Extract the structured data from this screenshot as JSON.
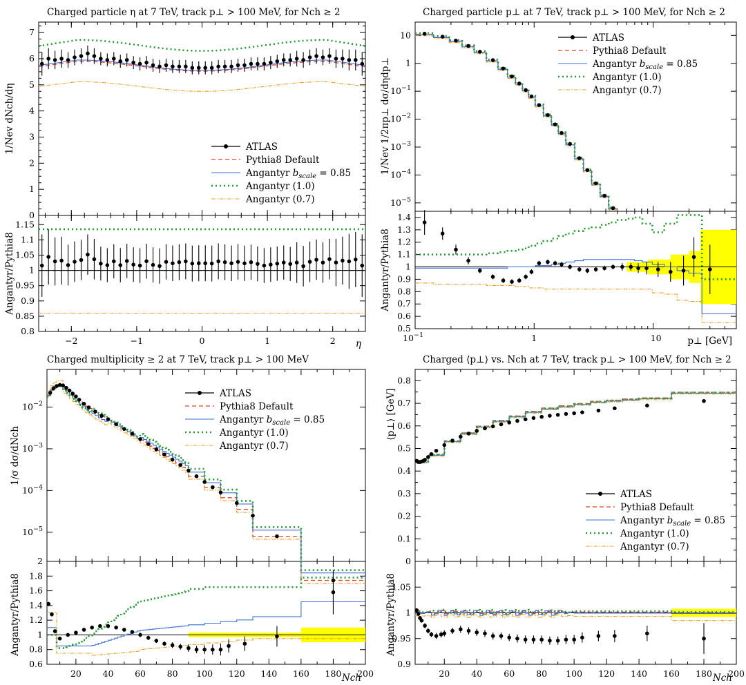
{
  "legend": {
    "atlas": "ATLAS",
    "default": "Pythia8 Default",
    "bscale": "Angantyr b_scale = 0.85",
    "a10": "Angantyr (1.0)",
    "a07": "Angantyr (0.7)"
  },
  "ratio_label": "Angantyr/Pythia8",
  "colors": {
    "atlas": "#000000",
    "default": "#e8402b",
    "bscale": "#3b6fd6",
    "a10": "#1e9e2e",
    "a07": "#f0a020",
    "band": "#ffff00"
  },
  "chart_data": [
    {
      "id": "eta",
      "type": "line",
      "title": "Charged particle η at 7 TeV, track p⊥ > 100 MeV, for Nch ≥ 2",
      "xlabel": "η",
      "ylabel": "1/Nev dNch/dη",
      "xlim": [
        -2.5,
        2.5
      ],
      "ylim": [
        0,
        7.4
      ],
      "ratio_ylim": [
        0.8,
        1.18
      ],
      "x_ticks": [
        -2,
        -1,
        0,
        1,
        2
      ],
      "y_ticks": [
        0,
        1,
        2,
        3,
        4,
        5,
        6,
        7
      ],
      "ratio_ticks": [
        0.8,
        0.85,
        0.9,
        0.95,
        1,
        1.05,
        1.1,
        1.15
      ],
      "legend_position": "bottom-right",
      "x": [
        -2.45,
        -2.35,
        -2.25,
        -2.15,
        -2.05,
        -1.95,
        -1.85,
        -1.75,
        -1.65,
        -1.55,
        -1.45,
        -1.35,
        -1.25,
        -1.15,
        -1.05,
        -0.95,
        -0.85,
        -0.75,
        -0.65,
        -0.55,
        -0.45,
        -0.35,
        -0.25,
        -0.15,
        -0.05,
        0.05,
        0.15,
        0.25,
        0.35,
        0.45,
        0.55,
        0.65,
        0.75,
        0.85,
        0.95,
        1.05,
        1.15,
        1.25,
        1.35,
        1.45,
        1.55,
        1.65,
        1.75,
        1.85,
        1.95,
        2.05,
        2.15,
        2.25,
        2.35,
        2.45
      ],
      "atlas": [
        5.8,
        6.0,
        5.95,
        6.0,
        5.95,
        6.05,
        6.1,
        6.2,
        6.1,
        6.0,
        5.95,
        6.0,
        5.9,
        5.95,
        5.85,
        5.8,
        5.85,
        5.75,
        5.7,
        5.75,
        5.7,
        5.7,
        5.7,
        5.65,
        5.65,
        5.65,
        5.65,
        5.7,
        5.7,
        5.7,
        5.75,
        5.75,
        5.8,
        5.8,
        5.8,
        5.85,
        5.9,
        5.95,
        5.95,
        6.0,
        5.95,
        6.05,
        6.1,
        6.05,
        6.1,
        6.0,
        6.0,
        5.95,
        5.95,
        5.8
      ],
      "atlas_err": [
        0.45,
        0.4,
        0.35,
        0.35,
        0.3,
        0.3,
        0.3,
        0.3,
        0.3,
        0.25,
        0.25,
        0.25,
        0.25,
        0.25,
        0.25,
        0.25,
        0.25,
        0.25,
        0.25,
        0.25,
        0.25,
        0.25,
        0.25,
        0.25,
        0.25,
        0.25,
        0.25,
        0.25,
        0.25,
        0.25,
        0.25,
        0.25,
        0.25,
        0.25,
        0.25,
        0.25,
        0.25,
        0.25,
        0.25,
        0.3,
        0.3,
        0.3,
        0.3,
        0.3,
        0.3,
        0.35,
        0.35,
        0.4,
        0.4,
        0.45
      ],
      "curves": {
        "default": {
          "peak": 5.9,
          "mid": 5.52
        },
        "bscale": {
          "peak": 5.95,
          "mid": 5.55
        },
        "a10": {
          "peak": 6.72,
          "mid": 6.3
        },
        "a07": {
          "peak": 5.12,
          "mid": 4.75
        }
      },
      "ratio": {
        "default": 1.0,
        "bscale": 1.0,
        "a10": 1.135,
        "a07": 0.86
      }
    },
    {
      "id": "pt",
      "type": "line",
      "title": "Charged particle p⊥ at 7 TeV, track p⊥ > 100 MeV, for Nch ≥ 2",
      "xlabel": "p⊥ [GeV]",
      "ylabel": "1/Nev 1/2πp⊥ dσ/dηdp⊥",
      "log_x": true,
      "log_y": true,
      "xlim": [
        0.1,
        50
      ],
      "ylim": [
        5e-06,
        30
      ],
      "ratio_ylim": [
        0.5,
        1.45
      ],
      "ratio_ticks": [
        0.5,
        0.6,
        0.7,
        0.8,
        0.9,
        1,
        1.1,
        1.2,
        1.3,
        1.4
      ],
      "legend_position": "top-right",
      "x": [
        0.12,
        0.17,
        0.22,
        0.28,
        0.35,
        0.45,
        0.55,
        0.65,
        0.75,
        0.85,
        0.95,
        1.1,
        1.3,
        1.5,
        1.7,
        2.0,
        2.4,
        2.8,
        3.3,
        3.9,
        4.6,
        5.5,
        6.5,
        7.5,
        8.8,
        11,
        14,
        18,
        22,
        30
      ],
      "atlas": [
        11.5,
        9.0,
        6.5,
        4.2,
        2.6,
        1.3,
        0.65,
        0.34,
        0.19,
        0.11,
        0.065,
        0.032,
        0.014,
        0.0065,
        0.0032,
        0.0013,
        0.0004,
        0.00015,
        5e-05,
        1.8e-05,
        6.5e-06,
        2.5e-06,
        1e-06,
        5e-07,
        2e-07,
        7e-08,
        2e-08,
        6e-09,
        2e-09,
        4e-10
      ],
      "ratio": {
        "atlas": [
          1.36,
          1.27,
          1.14,
          1.05,
          0.97,
          0.92,
          0.89,
          0.88,
          0.89,
          0.92,
          0.96,
          1.03,
          1.04,
          1.03,
          1.02,
          1.0,
          0.98,
          0.97,
          0.98,
          0.99,
          1.0,
          1.0,
          1.0,
          0.99,
          0.99,
          0.98,
          0.96,
          0.97,
          1.08,
          0.98
        ],
        "atlas_err": [
          0.1,
          0.05,
          0.04,
          0.03,
          0.02,
          0.02,
          0.02,
          0.02,
          0.02,
          0.02,
          0.02,
          0.02,
          0.02,
          0.02,
          0.02,
          0.02,
          0.02,
          0.02,
          0.02,
          0.02,
          0.02,
          0.03,
          0.03,
          0.04,
          0.05,
          0.06,
          0.08,
          0.12,
          0.16,
          0.2
        ],
        "band_x": [
          [
            6,
            9
          ],
          [
            9,
            14
          ],
          [
            14,
            20
          ],
          [
            20,
            25
          ],
          [
            25,
            50
          ]
        ],
        "band_err": [
          0.04,
          0.06,
          0.1,
          0.13,
          0.3
        ]
      }
    },
    {
      "id": "nch",
      "type": "line",
      "title": "Charged multiplicity ≥ 2 at 7 TeV, track p⊥ > 100 MeV",
      "xlabel": "Nch",
      "ylabel": "1/σ dσ/dNch",
      "log_y": true,
      "xlim": [
        2,
        200
      ],
      "ylim": [
        2e-06,
        0.08
      ],
      "ratio_ylim": [
        0.6,
        2.0
      ],
      "x_ticks": [
        20,
        40,
        60,
        80,
        100,
        120,
        140,
        160,
        180,
        200
      ],
      "ratio_ticks": [
        0.6,
        0.8,
        1,
        1.2,
        1.4,
        1.6,
        1.8
      ],
      "legend_position": "top-right",
      "atlas_x": [
        4,
        6,
        8,
        10,
        12,
        14,
        16,
        18,
        20,
        22,
        25,
        28,
        32,
        36,
        40,
        45,
        50,
        55,
        60,
        65,
        70,
        75,
        80,
        85,
        90,
        95,
        100,
        105,
        110,
        120,
        130,
        145,
        180
      ],
      "atlas": [
        0.022,
        0.028,
        0.032,
        0.034,
        0.033,
        0.029,
        0.025,
        0.021,
        0.018,
        0.015,
        0.012,
        0.0098,
        0.0078,
        0.0062,
        0.0051,
        0.0039,
        0.003,
        0.0023,
        0.0017,
        0.0013,
        0.00097,
        0.00073,
        0.00055,
        0.00041,
        0.0003,
        0.00022,
        0.00016,
        0.00012,
        9e-05,
        5e-05,
        2.5e-05,
        8e-06,
        7e-07
      ],
      "ratio": {
        "atlas_x": [
          3,
          5,
          7,
          10,
          15,
          20,
          25,
          30,
          35,
          40,
          45,
          50,
          55,
          60,
          65,
          70,
          75,
          80,
          85,
          90,
          95,
          100,
          105,
          110,
          115,
          125,
          145,
          180
        ],
        "atlas": [
          1.42,
          1.28,
          1.05,
          0.95,
          1.0,
          1.03,
          1.07,
          1.1,
          1.12,
          1.12,
          1.1,
          1.07,
          1.04,
          1.0,
          0.96,
          0.92,
          0.88,
          0.86,
          0.84,
          0.82,
          0.8,
          0.8,
          0.8,
          0.8,
          0.85,
          0.88,
          0.98,
          1.58
        ],
        "atlas_err": [
          0.03,
          0.03,
          0.03,
          0.02,
          0.02,
          0.02,
          0.02,
          0.02,
          0.02,
          0.02,
          0.02,
          0.02,
          0.02,
          0.03,
          0.03,
          0.03,
          0.03,
          0.04,
          0.04,
          0.05,
          0.05,
          0.06,
          0.07,
          0.08,
          0.09,
          0.1,
          0.14,
          0.3
        ],
        "band_x": [
          [
            90,
            160
          ],
          [
            160,
            200
          ]
        ],
        "band_err": [
          0.03,
          0.1
        ]
      }
    },
    {
      "id": "meanpt",
      "type": "line",
      "title": "Charged ⟨p⊥⟩ vs. Nch at 7 TeV, track p⊥ > 100 MeV, for Nch ≥ 2",
      "xlabel": "Nch",
      "ylabel": "⟨p⊥⟩ [GeV]",
      "xlim": [
        2,
        200
      ],
      "ylim": [
        0,
        0.85
      ],
      "ratio_ylim": [
        0.9,
        1.1
      ],
      "x_ticks": [
        20,
        40,
        60,
        80,
        100,
        120,
        140,
        160,
        180,
        200
      ],
      "y_ticks": [
        0,
        0.1,
        0.2,
        0.3,
        0.4,
        0.5,
        0.6,
        0.7,
        0.8
      ],
      "ratio_ticks": [
        0.9,
        0.95,
        1,
        1.05
      ],
      "legend_position": "bottom-right",
      "mc_steps_x": [
        2,
        10,
        20,
        30,
        40,
        50,
        60,
        70,
        80,
        90,
        100,
        110,
        120,
        130,
        140,
        160,
        200
      ],
      "mc_steps": [
        0.44,
        0.47,
        0.53,
        0.565,
        0.595,
        0.62,
        0.64,
        0.66,
        0.675,
        0.685,
        0.695,
        0.705,
        0.71,
        0.715,
        0.72,
        0.745,
        0.745
      ],
      "atlas_x": [
        3,
        4,
        5,
        6,
        7,
        8,
        10,
        12,
        15,
        20,
        25,
        30,
        35,
        40,
        45,
        50,
        55,
        60,
        65,
        70,
        75,
        80,
        85,
        90,
        95,
        100,
        105,
        115,
        125,
        145,
        180
      ],
      "atlas": [
        0.445,
        0.44,
        0.44,
        0.442,
        0.445,
        0.45,
        0.462,
        0.475,
        0.49,
        0.515,
        0.535,
        0.552,
        0.566,
        0.578,
        0.589,
        0.598,
        0.607,
        0.615,
        0.622,
        0.629,
        0.635,
        0.64,
        0.645,
        0.649,
        0.653,
        0.656,
        0.66,
        0.668,
        0.678,
        0.69,
        0.71
      ],
      "ratio": {
        "atlas_x": [
          3,
          4,
          5,
          6,
          8,
          10,
          12,
          15,
          18,
          20,
          25,
          30,
          35,
          40,
          45,
          50,
          55,
          60,
          65,
          70,
          75,
          80,
          85,
          90,
          95,
          100,
          105,
          115,
          125,
          145,
          180
        ],
        "atlas": [
          1.005,
          0.998,
          0.99,
          0.985,
          0.975,
          0.965,
          0.958,
          0.955,
          0.958,
          0.96,
          0.965,
          0.968,
          0.965,
          0.962,
          0.96,
          0.955,
          0.955,
          0.952,
          0.95,
          0.948,
          0.948,
          0.948,
          0.946,
          0.946,
          0.948,
          0.948,
          0.952,
          0.955,
          0.955,
          0.96,
          0.95
        ],
        "atlas_err": [
          0.004,
          0.004,
          0.004,
          0.004,
          0.005,
          0.005,
          0.005,
          0.006,
          0.006,
          0.006,
          0.006,
          0.007,
          0.007,
          0.007,
          0.007,
          0.007,
          0.007,
          0.007,
          0.008,
          0.008,
          0.008,
          0.008,
          0.008,
          0.008,
          0.009,
          0.009,
          0.01,
          0.01,
          0.012,
          0.015,
          0.03
        ],
        "band_x": [
          [
            160,
            200
          ]
        ],
        "band_err": [
          0.008
        ]
      }
    }
  ]
}
